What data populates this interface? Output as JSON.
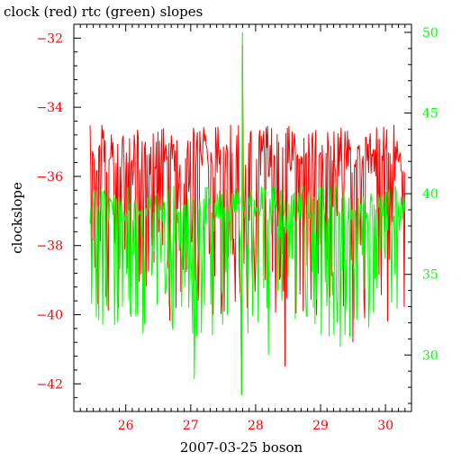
{
  "chart_data": {
    "type": "line",
    "title": "clock (red) rtc (green) slopes",
    "xlabel": "2007-03-25 boson",
    "ylabel": "clockslope",
    "xlim": [
      25.2,
      30.4
    ],
    "x_ticks": [
      26,
      27,
      28,
      29,
      30
    ],
    "ylim_left": [
      -42.8,
      -31.6
    ],
    "y_ticks_left": [
      -42,
      -40,
      -38,
      -36,
      -34,
      -32
    ],
    "ylim_right": [
      26.5,
      50.5
    ],
    "y_ticks_right": [
      30,
      35,
      40,
      45,
      50
    ],
    "grid": false,
    "colors": {
      "clock": "#ff0000",
      "rtc": "#00ff00",
      "axes": "#000000"
    },
    "series": [
      {
        "axis": "left",
        "color": "#ff0000",
        "x_range": [
          25.45,
          30.3
        ],
        "points": 400,
        "typical_range": [
          -38.5,
          -34.5
        ],
        "extremes": [
          [
            27.8,
            -32.2
          ],
          [
            27.78,
            -42.3
          ],
          [
            28.45,
            -41.5
          ],
          [
            27.35,
            -40.0
          ],
          [
            29.5,
            -40.8
          ]
        ]
      },
      {
        "axis": "right",
        "color": "#00ff00",
        "x_range": [
          25.45,
          30.3
        ],
        "points": 400,
        "typical_range": [
          34.0,
          40.5
        ],
        "extremes": [
          [
            27.8,
            50.0
          ],
          [
            27.78,
            27.5
          ],
          [
            27.05,
            28.5
          ],
          [
            28.2,
            30.0
          ],
          [
            29.3,
            30.5
          ]
        ]
      }
    ]
  }
}
